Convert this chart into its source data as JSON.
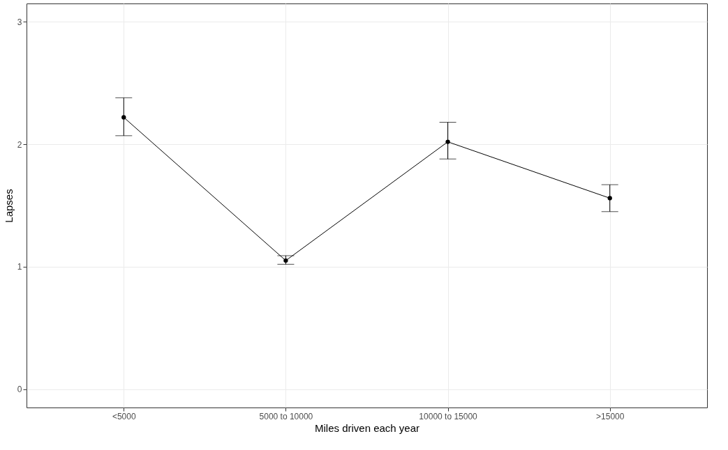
{
  "chart_data": {
    "type": "line",
    "xlabel": "Miles driven each year",
    "ylabel": "Lapses",
    "categories": [
      "<5000",
      "5000 to 10000",
      "10000 to 15000",
      ">15000"
    ],
    "values": [
      2.22,
      1.05,
      2.02,
      1.56
    ],
    "errors": [
      [
        2.07,
        2.38
      ],
      [
        1.02,
        1.09
      ],
      [
        1.88,
        2.18
      ],
      [
        1.45,
        1.67
      ]
    ],
    "color": "#000000",
    "marker": "circle",
    "line_style": "solid",
    "ylim": [
      -0.15,
      3.15
    ],
    "yticks": [
      0,
      1,
      2,
      3
    ],
    "grid": true
  }
}
